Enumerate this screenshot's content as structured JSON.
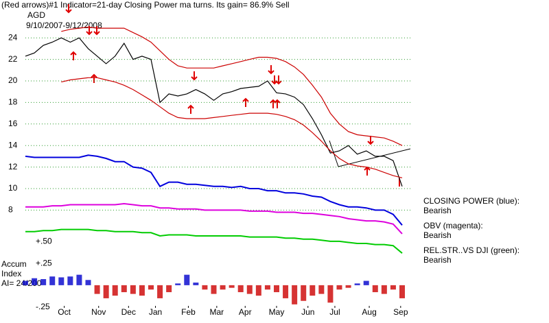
{
  "chart_data": [
    {
      "type": "line",
      "title": "(Red arrows)#1 Indicator=21-day Closing Power ma turns.  Its gain= 86.9% Sell",
      "subtitle": "AGD",
      "date_range": "9/10/2007-9/12/2008",
      "annotations": [
        "CLOSING POWER (blue):",
        "Bearish",
        "OBV (magenta):",
        "Bearish",
        "REL.STR..VS DJI (green):",
        "Bearish"
      ],
      "x": [
        0,
        6,
        12,
        18,
        24,
        30,
        36,
        42,
        48,
        54,
        60,
        66,
        72,
        78,
        84,
        90,
        96,
        102,
        108,
        114,
        120,
        126,
        132,
        138,
        144,
        150,
        156,
        162,
        168,
        174,
        180,
        186,
        192,
        198,
        204,
        210,
        216,
        222,
        228,
        234,
        240,
        246,
        252
      ],
      "xlim": [
        0,
        252
      ],
      "ylim": [
        3.5,
        26.5
      ],
      "yticks": [
        8,
        10,
        12,
        14,
        16,
        18,
        20,
        22,
        24
      ],
      "grid": true,
      "series": [
        {
          "color": "#000000",
          "values": [
            22.3,
            22.6,
            23.3,
            23.6,
            24.0,
            23.6,
            24.0,
            23.0,
            22.3,
            21.6,
            22.3,
            23.5,
            22.0,
            22.3,
            22.0,
            18.0,
            18.8,
            18.6,
            18.8,
            19.2,
            18.8,
            18.2,
            18.8,
            19.0,
            19.3,
            19.4,
            19.5,
            20.0,
            18.9,
            18.8,
            18.5,
            17.8,
            16.5,
            15.0,
            13.3,
            13.5,
            14.0,
            13.2,
            13.5,
            13.0,
            13.0,
            12.6,
            10.2
          ]
        },
        {
          "color": "#cc0000",
          "values": [
            null,
            null,
            null,
            null,
            24.6,
            24.8,
            24.9,
            25.0,
            24.9,
            24.9,
            24.9,
            24.9,
            24.5,
            24.1,
            23.6,
            22.8,
            22.0,
            21.4,
            21.2,
            21.2,
            21.2,
            21.2,
            21.4,
            21.6,
            21.8,
            22.0,
            22.2,
            22.2,
            22.1,
            21.8,
            21.3,
            20.6,
            19.6,
            18.5,
            17.0,
            16.0,
            15.3,
            15.0,
            14.9,
            14.8,
            14.7,
            14.4,
            14.0
          ]
        },
        {
          "color": "#cc0000",
          "values": [
            null,
            null,
            null,
            null,
            19.9,
            20.1,
            20.2,
            20.3,
            20.3,
            20.1,
            19.9,
            19.6,
            19.2,
            18.7,
            18.2,
            17.6,
            17.0,
            16.6,
            16.5,
            16.5,
            16.5,
            16.6,
            16.7,
            16.8,
            16.9,
            17.0,
            17.0,
            17.0,
            16.9,
            16.7,
            16.4,
            15.9,
            15.2,
            14.4,
            13.5,
            12.8,
            12.3,
            12.1,
            12.0,
            11.8,
            11.5,
            11.2,
            11.0
          ]
        },
        {
          "color": "#0000dd",
          "values": [
            13.0,
            12.9,
            12.9,
            12.9,
            12.9,
            12.9,
            12.9,
            13.1,
            13.0,
            12.8,
            12.5,
            12.5,
            12.0,
            11.9,
            11.5,
            10.2,
            10.6,
            10.6,
            10.4,
            10.4,
            10.3,
            10.2,
            10.2,
            10.1,
            10.2,
            10.0,
            10.0,
            9.8,
            9.8,
            9.6,
            9.6,
            9.5,
            9.3,
            9.2,
            8.8,
            8.5,
            8.3,
            8.3,
            8.2,
            8.0,
            8.0,
            7.6,
            6.6
          ]
        },
        {
          "color": "#dd00dd",
          "values": [
            8.3,
            8.3,
            8.3,
            8.4,
            8.4,
            8.5,
            8.5,
            8.5,
            8.5,
            8.5,
            8.5,
            8.6,
            8.5,
            8.4,
            8.4,
            8.2,
            8.2,
            8.1,
            8.1,
            8.1,
            8.0,
            8.0,
            8.0,
            8.0,
            8.0,
            7.9,
            7.9,
            7.9,
            7.8,
            7.8,
            7.8,
            7.7,
            7.7,
            7.6,
            7.5,
            7.4,
            7.2,
            7.1,
            7.0,
            7.0,
            6.9,
            6.7,
            5.8
          ]
        },
        {
          "color": "#00cc00",
          "values": [
            6.0,
            6.0,
            6.1,
            6.1,
            6.2,
            6.2,
            6.2,
            6.2,
            6.1,
            6.1,
            6.0,
            6.0,
            6.0,
            5.9,
            5.9,
            5.6,
            5.7,
            5.7,
            5.7,
            5.6,
            5.6,
            5.6,
            5.6,
            5.6,
            5.6,
            5.5,
            5.5,
            5.5,
            5.5,
            5.4,
            5.4,
            5.3,
            5.3,
            5.2,
            5.1,
            5.1,
            5.0,
            4.9,
            4.9,
            4.8,
            4.8,
            4.7,
            4.0
          ]
        }
      ]
    },
    {
      "type": "bar",
      "labels": [
        "Accum",
        "Index",
        "AI= 24/200"
      ],
      "x": [
        0,
        6,
        12,
        18,
        24,
        30,
        36,
        42,
        48,
        54,
        60,
        66,
        72,
        78,
        84,
        90,
        96,
        102,
        108,
        114,
        120,
        126,
        132,
        138,
        144,
        150,
        156,
        162,
        168,
        174,
        180,
        186,
        192,
        198,
        204,
        210,
        216,
        222,
        228,
        234,
        240,
        246,
        252
      ],
      "values": [
        0.05,
        0.08,
        0.07,
        0.1,
        0.09,
        0.1,
        0.12,
        0.06,
        -0.1,
        -0.15,
        -0.12,
        -0.08,
        -0.1,
        -0.12,
        -0.05,
        -0.15,
        -0.08,
        0.02,
        0.12,
        0.03,
        -0.05,
        -0.1,
        -0.05,
        -0.03,
        -0.08,
        -0.1,
        -0.12,
        -0.05,
        -0.08,
        -0.15,
        -0.22,
        -0.18,
        -0.12,
        -0.1,
        -0.2,
        -0.05,
        -0.03,
        0.02,
        0.05,
        -0.08,
        -0.1,
        -0.05,
        -0.15
      ],
      "color": "#0000cc",
      "negative_color": "#cc0000",
      "xlim": [
        0,
        252
      ],
      "xticks": [
        {
          "value": 26,
          "label": "Oct"
        },
        {
          "value": 49,
          "label": "Nov"
        },
        {
          "value": 69,
          "label": "Dec"
        },
        {
          "value": 87,
          "label": "Jan"
        },
        {
          "value": 109,
          "label": "Feb"
        },
        {
          "value": 128,
          "label": "Mar"
        },
        {
          "value": 147,
          "label": "Apr"
        },
        {
          "value": 168,
          "label": "May"
        },
        {
          "value": 189,
          "label": "Jun"
        },
        {
          "value": 207,
          "label": "Jul"
        },
        {
          "value": 230,
          "label": "Aug"
        },
        {
          "value": 251,
          "label": "Sep"
        }
      ],
      "ylim": [
        -0.3,
        0.55
      ],
      "yticks": [
        {
          "value": 0.5,
          "label": "+.50"
        },
        {
          "value": 0.25,
          "label": "+.25"
        },
        {
          "value": -0.25,
          "label": "-.25"
        }
      ]
    }
  ]
}
